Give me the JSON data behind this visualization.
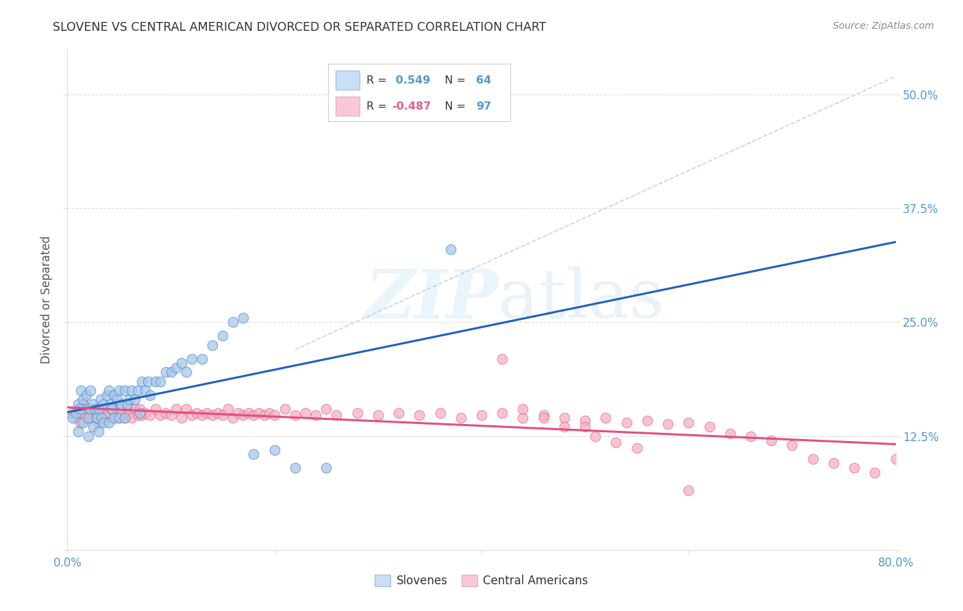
{
  "title": "SLOVENE VS CENTRAL AMERICAN DIVORCED OR SEPARATED CORRELATION CHART",
  "source": "Source: ZipAtlas.com",
  "ylabel": "Divorced or Separated",
  "x_min": 0.0,
  "x_max": 0.8,
  "y_min": 0.0,
  "y_max": 0.55,
  "x_ticks": [
    0.0,
    0.2,
    0.4,
    0.6,
    0.8
  ],
  "x_tick_labels": [
    "0.0%",
    "",
    "",
    "",
    "80.0%"
  ],
  "y_ticks": [
    0.0,
    0.125,
    0.25,
    0.375,
    0.5
  ],
  "y_tick_labels": [
    "",
    "12.5%",
    "25.0%",
    "37.5%",
    "50.0%"
  ],
  "slovene_color": "#a8c8e8",
  "central_american_color": "#f8b0c0",
  "slovene_edge_color": "#5090d0",
  "central_american_edge_color": "#e07090",
  "slovene_line_color": "#2060c0",
  "central_american_line_color": "#e05080",
  "dash_line_color": "#c0d4e8",
  "background_color": "#ffffff",
  "grid_color": "#dddddd",
  "tick_color": "#5599cc",
  "title_color": "#333333",
  "source_color": "#888888",
  "ylabel_color": "#555555",
  "watermark_color": "#ddeeff",
  "legend_box_color_slovene": "#c8dff5",
  "legend_box_color_ca": "#fac8d4",
  "slovene_scatter_x": [
    0.005,
    0.008,
    0.01,
    0.01,
    0.012,
    0.013,
    0.015,
    0.015,
    0.018,
    0.02,
    0.02,
    0.022,
    0.022,
    0.025,
    0.025,
    0.027,
    0.028,
    0.03,
    0.03,
    0.032,
    0.033,
    0.035,
    0.035,
    0.038,
    0.04,
    0.04,
    0.042,
    0.043,
    0.045,
    0.045,
    0.048,
    0.05,
    0.05,
    0.052,
    0.055,
    0.055,
    0.058,
    0.06,
    0.062,
    0.065,
    0.068,
    0.07,
    0.072,
    0.075,
    0.078,
    0.08,
    0.085,
    0.09,
    0.095,
    0.1,
    0.105,
    0.11,
    0.115,
    0.12,
    0.13,
    0.14,
    0.15,
    0.16,
    0.17,
    0.18,
    0.2,
    0.22,
    0.25,
    0.37
  ],
  "slovene_scatter_y": [
    0.145,
    0.15,
    0.13,
    0.16,
    0.155,
    0.175,
    0.14,
    0.165,
    0.17,
    0.125,
    0.145,
    0.155,
    0.175,
    0.135,
    0.16,
    0.155,
    0.145,
    0.13,
    0.155,
    0.165,
    0.145,
    0.14,
    0.16,
    0.17,
    0.14,
    0.175,
    0.16,
    0.155,
    0.145,
    0.17,
    0.165,
    0.145,
    0.175,
    0.16,
    0.145,
    0.175,
    0.16,
    0.165,
    0.175,
    0.165,
    0.175,
    0.15,
    0.185,
    0.175,
    0.185,
    0.17,
    0.185,
    0.185,
    0.195,
    0.195,
    0.2,
    0.205,
    0.195,
    0.21,
    0.21,
    0.225,
    0.235,
    0.25,
    0.255,
    0.105,
    0.11,
    0.09,
    0.09,
    0.33
  ],
  "ca_scatter_x": [
    0.005,
    0.008,
    0.01,
    0.012,
    0.015,
    0.015,
    0.018,
    0.02,
    0.022,
    0.025,
    0.027,
    0.03,
    0.032,
    0.035,
    0.038,
    0.04,
    0.042,
    0.045,
    0.048,
    0.05,
    0.052,
    0.055,
    0.058,
    0.06,
    0.062,
    0.065,
    0.068,
    0.07,
    0.072,
    0.075,
    0.08,
    0.085,
    0.09,
    0.095,
    0.1,
    0.105,
    0.11,
    0.115,
    0.12,
    0.125,
    0.13,
    0.135,
    0.14,
    0.145,
    0.15,
    0.155,
    0.16,
    0.165,
    0.17,
    0.175,
    0.18,
    0.185,
    0.19,
    0.195,
    0.2,
    0.21,
    0.22,
    0.23,
    0.24,
    0.25,
    0.26,
    0.28,
    0.3,
    0.32,
    0.34,
    0.36,
    0.38,
    0.4,
    0.42,
    0.44,
    0.46,
    0.48,
    0.5,
    0.52,
    0.54,
    0.56,
    0.58,
    0.6,
    0.62,
    0.64,
    0.66,
    0.68,
    0.7,
    0.72,
    0.74,
    0.76,
    0.78,
    0.8,
    0.48,
    0.51,
    0.53,
    0.55,
    0.42,
    0.44,
    0.46,
    0.5,
    0.6
  ],
  "ca_scatter_y": [
    0.15,
    0.145,
    0.155,
    0.14,
    0.15,
    0.16,
    0.145,
    0.155,
    0.145,
    0.15,
    0.155,
    0.14,
    0.155,
    0.15,
    0.145,
    0.15,
    0.155,
    0.145,
    0.155,
    0.145,
    0.155,
    0.145,
    0.155,
    0.15,
    0.145,
    0.155,
    0.148,
    0.155,
    0.148,
    0.15,
    0.148,
    0.155,
    0.148,
    0.15,
    0.148,
    0.155,
    0.145,
    0.155,
    0.148,
    0.15,
    0.148,
    0.15,
    0.148,
    0.15,
    0.148,
    0.155,
    0.145,
    0.15,
    0.148,
    0.15,
    0.148,
    0.15,
    0.148,
    0.15,
    0.148,
    0.155,
    0.148,
    0.15,
    0.148,
    0.155,
    0.148,
    0.15,
    0.148,
    0.15,
    0.148,
    0.15,
    0.145,
    0.148,
    0.15,
    0.145,
    0.148,
    0.145,
    0.142,
    0.145,
    0.14,
    0.142,
    0.138,
    0.14,
    0.135,
    0.128,
    0.125,
    0.12,
    0.115,
    0.1,
    0.095,
    0.09,
    0.085,
    0.1,
    0.135,
    0.125,
    0.118,
    0.112,
    0.21,
    0.155,
    0.145,
    0.135,
    0.065
  ]
}
